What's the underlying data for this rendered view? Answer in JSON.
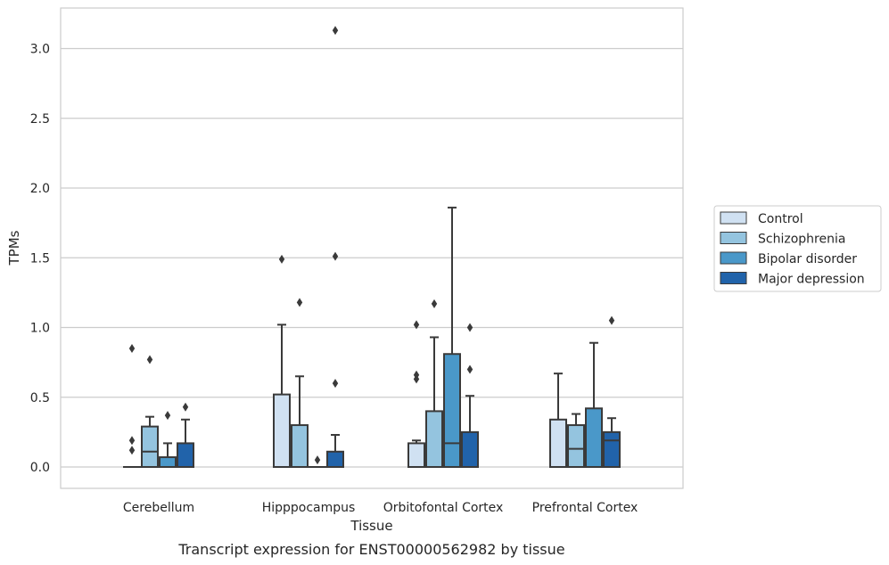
{
  "chart_data": {
    "type": "box",
    "ylabel": "TPMs",
    "xlabel": "Tissue",
    "caption": "Transcript expression for ENST00000562982 by tissue",
    "ylim": [
      -0.15,
      3.3
    ],
    "yticks": [
      0.0,
      0.5,
      1.0,
      1.5,
      2.0,
      2.5,
      3.0
    ],
    "ytick_labels": [
      "0.0",
      "0.5",
      "1.0",
      "1.5",
      "2.0",
      "2.5",
      "3.0"
    ],
    "categories": [
      "Cerebellum",
      "Hipppocampus",
      "Orbitofontal Cortex",
      "Prefrontal Cortex"
    ],
    "grid": true,
    "legend_position": "right",
    "series": [
      {
        "name": "Control",
        "color": "#d0e1f2",
        "boxes": [
          {
            "q1": 0.0,
            "median": 0.0,
            "q3": 0.0,
            "whisker_low": 0.0,
            "whisker_high": 0.0,
            "outliers": [
              0.12,
              0.19,
              0.85
            ]
          },
          {
            "q1": 0.0,
            "median": 0.0,
            "q3": 0.52,
            "whisker_low": 0.0,
            "whisker_high": 1.02,
            "outliers": [
              1.49
            ]
          },
          {
            "q1": 0.0,
            "median": 0.0,
            "q3": 0.17,
            "whisker_low": 0.0,
            "whisker_high": 0.19,
            "outliers": [
              0.63,
              0.66,
              1.02
            ]
          },
          {
            "q1": 0.0,
            "median": 0.0,
            "q3": 0.34,
            "whisker_low": 0.0,
            "whisker_high": 0.67,
            "outliers": []
          }
        ]
      },
      {
        "name": "Schizophrenia",
        "color": "#94c4df",
        "boxes": [
          {
            "q1": 0.0,
            "median": 0.11,
            "q3": 0.29,
            "whisker_low": 0.0,
            "whisker_high": 0.36,
            "outliers": [
              0.77
            ]
          },
          {
            "q1": 0.0,
            "median": 0.0,
            "q3": 0.3,
            "whisker_low": 0.0,
            "whisker_high": 0.65,
            "outliers": [
              1.18
            ]
          },
          {
            "q1": 0.0,
            "median": 0.0,
            "q3": 0.4,
            "whisker_low": 0.0,
            "whisker_high": 0.93,
            "outliers": [
              1.17
            ]
          },
          {
            "q1": 0.0,
            "median": 0.13,
            "q3": 0.3,
            "whisker_low": 0.0,
            "whisker_high": 0.38,
            "outliers": []
          }
        ]
      },
      {
        "name": "Bipolar disorder",
        "color": "#4a98c9",
        "boxes": [
          {
            "q1": 0.0,
            "median": 0.0,
            "q3": 0.07,
            "whisker_low": 0.0,
            "whisker_high": 0.17,
            "outliers": [
              0.37
            ]
          },
          {
            "q1": 0.0,
            "median": 0.0,
            "q3": 0.0,
            "whisker_low": 0.0,
            "whisker_high": 0.0,
            "outliers": [
              0.05
            ]
          },
          {
            "q1": 0.0,
            "median": 0.17,
            "q3": 0.81,
            "whisker_low": 0.0,
            "whisker_high": 1.86,
            "outliers": []
          },
          {
            "q1": 0.0,
            "median": 0.0,
            "q3": 0.42,
            "whisker_low": 0.0,
            "whisker_high": 0.89,
            "outliers": []
          }
        ]
      },
      {
        "name": "Major depression",
        "color": "#2163aa",
        "boxes": [
          {
            "q1": 0.0,
            "median": 0.0,
            "q3": 0.17,
            "whisker_low": 0.0,
            "whisker_high": 0.34,
            "outliers": [
              0.43
            ]
          },
          {
            "q1": 0.0,
            "median": 0.0,
            "q3": 0.11,
            "whisker_low": 0.0,
            "whisker_high": 0.23,
            "outliers": [
              0.6,
              1.51,
              3.13
            ]
          },
          {
            "q1": 0.0,
            "median": 0.0,
            "q3": 0.25,
            "whisker_low": 0.0,
            "whisker_high": 0.51,
            "outliers": [
              0.7,
              1.0
            ]
          },
          {
            "q1": 0.0,
            "median": 0.19,
            "q3": 0.25,
            "whisker_low": 0.0,
            "whisker_high": 0.35,
            "outliers": [
              1.05
            ]
          }
        ]
      }
    ]
  }
}
